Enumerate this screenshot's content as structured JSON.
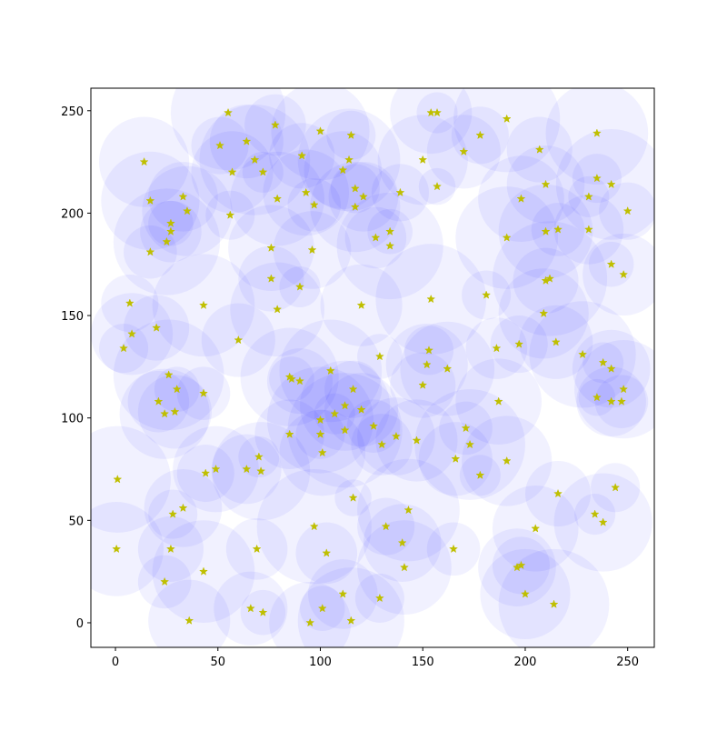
{
  "chart_data": {
    "type": "scatter",
    "x": [
      14,
      55,
      78,
      100,
      115,
      154,
      157,
      191,
      178,
      170,
      150,
      157,
      207,
      235,
      210,
      235,
      242,
      250,
      231,
      198,
      231,
      210,
      216,
      191,
      242,
      248,
      210,
      212,
      181,
      209,
      215,
      197,
      228,
      238,
      242,
      248,
      247,
      242,
      235,
      187,
      186,
      154,
      153,
      152,
      162,
      150,
      129,
      105,
      116,
      120,
      112,
      107,
      100,
      126,
      137,
      130,
      112,
      100,
      101,
      85,
      85,
      86,
      90,
      147,
      171,
      173,
      166,
      178,
      191,
      116,
      143,
      132,
      140,
      141,
      129,
      111,
      115,
      101,
      95,
      103,
      97,
      165,
      205,
      216,
      234,
      238,
      244,
      196,
      198,
      200,
      214,
      72,
      66,
      69,
      43,
      24,
      36,
      27,
      0.5,
      1,
      28,
      33,
      44,
      49,
      64,
      70,
      71,
      43,
      29,
      24,
      21,
      30,
      26,
      20,
      8,
      4,
      7,
      43,
      60,
      79,
      76,
      90,
      76,
      96,
      17,
      25,
      27,
      27,
      35,
      33,
      17,
      56,
      57,
      51,
      64,
      68,
      72,
      79,
      91,
      93,
      97,
      111,
      114,
      117,
      121,
      117,
      127,
      134,
      134,
      139,
      120
    ],
    "y": [
      225,
      249,
      243,
      240,
      238,
      249,
      249,
      246,
      238,
      230,
      226,
      213,
      231,
      239,
      214,
      217,
      214,
      201,
      208,
      207,
      192,
      191,
      192,
      188,
      175,
      170,
      167,
      168,
      160,
      151,
      137,
      136,
      131,
      127,
      124,
      114,
      108,
      108,
      110,
      108,
      134,
      158,
      133,
      126,
      124,
      116,
      130,
      123,
      114,
      104,
      106,
      102,
      99,
      96,
      91,
      87,
      94,
      92,
      83,
      92,
      120,
      119,
      118,
      89,
      95,
      87,
      80,
      72,
      79,
      61,
      55,
      47,
      39,
      27,
      12,
      14,
      1,
      7,
      0,
      34,
      47,
      36,
      46,
      63,
      53,
      49,
      66,
      27,
      28,
      14,
      9,
      5,
      7,
      36,
      25,
      20,
      1,
      36,
      36,
      70,
      53,
      56,
      73,
      75,
      75,
      81,
      74,
      112,
      103,
      102,
      108,
      114,
      121,
      144,
      141,
      134,
      156,
      155,
      138,
      153,
      168,
      164,
      183,
      182,
      181,
      186,
      191,
      195,
      201,
      208,
      206,
      199,
      220,
      233,
      235,
      226,
      220,
      207,
      228,
      210,
      204,
      221,
      226,
      212,
      208,
      203,
      188,
      191,
      184,
      210,
      155
    ],
    "sizes": [
      22,
      28,
      15,
      24,
      12,
      20,
      10,
      26,
      14,
      18,
      22,
      9,
      16,
      25,
      19,
      12,
      27,
      14,
      10,
      21,
      17,
      23,
      13,
      25,
      11,
      20,
      16,
      28,
      12,
      22,
      18,
      14,
      26,
      10,
      19,
      24,
      13,
      17,
      9,
      21,
      15,
      27,
      12,
      20,
      23,
      16,
      11,
      25,
      14,
      18,
      22,
      10,
      26,
      13,
      19,
      15,
      28,
      12,
      21,
      17,
      24,
      11,
      16,
      20,
      13,
      27,
      18,
      10,
      22,
      9,
      25,
      14,
      19,
      23,
      12,
      17,
      26,
      11,
      20,
      15,
      28,
      13,
      21,
      16,
      10,
      24,
      12,
      19,
      14,
      22,
      27,
      11,
      18,
      15,
      25,
      13,
      20,
      16,
      23,
      26,
      12,
      19,
      14,
      21,
      17,
      10,
      24,
      13,
      18,
      22,
      15,
      11,
      27,
      16,
      20,
      12,
      14,
      25,
      18,
      23,
      16,
      10,
      21,
      19,
      13,
      26,
      15,
      11,
      22,
      17,
      24,
      12,
      20,
      14,
      18,
      27,
      10,
      23,
      16,
      21,
      13,
      19,
      25,
      12,
      17,
      22,
      15,
      11,
      26,
      14,
      20
    ],
    "color": "#bfbf00",
    "bubble_color": "#0000ff",
    "bubble_alpha": 0.055,
    "xlim": [
      -12,
      263
    ],
    "ylim": [
      -12,
      261
    ],
    "xticks": [
      0,
      50,
      100,
      150,
      200,
      250
    ],
    "yticks": [
      0,
      50,
      100,
      150,
      200,
      250
    ]
  }
}
